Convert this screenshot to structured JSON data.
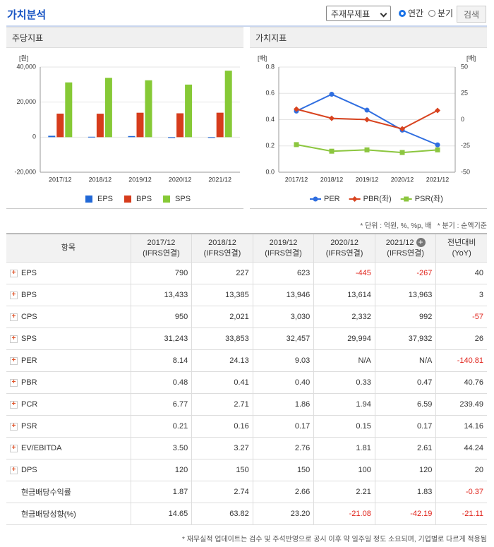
{
  "header": {
    "title": "가치분석",
    "select": "주재무제표",
    "radios": [
      "연간",
      "분기"
    ],
    "selected": 0,
    "button": "검색"
  },
  "chart_data": [
    {
      "type": "bar",
      "title": "주당지표",
      "y_unit": "[원]",
      "categories": [
        "2017/12",
        "2018/12",
        "2019/12",
        "2020/12",
        "2021/12"
      ],
      "series": [
        {
          "name": "EPS",
          "color": "#2168d6",
          "values": [
            790,
            227,
            623,
            -445,
            -267
          ]
        },
        {
          "name": "BPS",
          "color": "#d63c1c",
          "values": [
            13433,
            13385,
            13946,
            13614,
            13963
          ]
        },
        {
          "name": "SPS",
          "color": "#86c936",
          "values": [
            31243,
            33853,
            32457,
            29994,
            37932
          ]
        }
      ],
      "ylim": [
        -20000,
        40000
      ],
      "yticks": [
        {
          "value": -20000,
          "label": "-20,000"
        },
        0,
        {
          "value": 20000,
          "label": "20,000"
        },
        {
          "value": 40000,
          "label": "40,000"
        }
      ],
      "grid": true
    },
    {
      "type": "line",
      "title": "가치지표",
      "y_unit": "[배]",
      "y2_unit": "[배]",
      "categories": [
        "2017/12",
        "2018/12",
        "2019/12",
        "2020/12",
        "2021/12"
      ],
      "series": [
        {
          "name": "PER",
          "color": "#2f6ee0",
          "marker": "circle",
          "axis": "y2",
          "values": [
            8.14,
            24.13,
            9.03,
            -10,
            -24
          ]
        },
        {
          "name": "PBR(좌)",
          "color": "#d8431f",
          "marker": "diamond",
          "values": [
            0.48,
            0.41,
            0.4,
            0.33,
            0.47
          ]
        },
        {
          "name": "PSR(좌)",
          "color": "#8cc63f",
          "marker": "square",
          "values": [
            0.21,
            0.16,
            0.17,
            0.15,
            0.17
          ]
        }
      ],
      "ylim": [
        0,
        0.8
      ],
      "yticks": [
        {
          "value": 0,
          "label": "0.0"
        },
        0.2,
        0.4,
        0.6,
        0.8
      ],
      "y2lim": [
        -50,
        50
      ],
      "y2ticks": [
        -50,
        -25,
        0,
        25,
        50
      ],
      "grid": true
    }
  ],
  "notes": {
    "unit": "* 단위 : 억원, %, %p, 배",
    "quarter": "* 분기 : 순액기준",
    "footer": "* 재무실적 업데이트는 검수 및 주석반영으로 공시 이후 약 일주일 정도 소요되며, 기업별로 다르게 적용됨"
  },
  "table": {
    "columns": [
      [
        "항목"
      ],
      [
        "2017/12",
        "(IFRS연결)"
      ],
      [
        "2018/12",
        "(IFRS연결)"
      ],
      [
        "2019/12",
        "(IFRS연결)"
      ],
      [
        "2020/12",
        "(IFRS연결)"
      ],
      [
        "2021/12",
        "(IFRS연결)"
      ],
      [
        "전년대비",
        "(YoY)"
      ]
    ],
    "rows": [
      {
        "label": "EPS",
        "expandable": true,
        "values": [
          "790",
          "227",
          "623",
          "-445",
          "-267",
          "40"
        ]
      },
      {
        "label": "BPS",
        "expandable": true,
        "values": [
          "13,433",
          "13,385",
          "13,946",
          "13,614",
          "13,963",
          "3"
        ]
      },
      {
        "label": "CPS",
        "expandable": true,
        "values": [
          "950",
          "2,021",
          "3,030",
          "2,332",
          "992",
          "-57"
        ]
      },
      {
        "label": "SPS",
        "expandable": true,
        "values": [
          "31,243",
          "33,853",
          "32,457",
          "29,994",
          "37,932",
          "26"
        ]
      },
      {
        "label": "PER",
        "expandable": true,
        "values": [
          "8.14",
          "24.13",
          "9.03",
          "N/A",
          "N/A",
          "-140.81"
        ]
      },
      {
        "label": "PBR",
        "expandable": true,
        "values": [
          "0.48",
          "0.41",
          "0.40",
          "0.33",
          "0.47",
          "40.76"
        ]
      },
      {
        "label": "PCR",
        "expandable": true,
        "values": [
          "6.77",
          "2.71",
          "1.86",
          "1.94",
          "6.59",
          "239.49"
        ]
      },
      {
        "label": "PSR",
        "expandable": true,
        "values": [
          "0.21",
          "0.16",
          "0.17",
          "0.15",
          "0.17",
          "14.16"
        ]
      },
      {
        "label": "EV/EBITDA",
        "expandable": true,
        "values": [
          "3.50",
          "3.27",
          "2.76",
          "1.81",
          "2.61",
          "44.24"
        ]
      },
      {
        "label": "DPS",
        "expandable": true,
        "values": [
          "120",
          "150",
          "150",
          "100",
          "120",
          "20"
        ]
      },
      {
        "label": "현금배당수익률",
        "expandable": false,
        "values": [
          "1.87",
          "2.74",
          "2.66",
          "2.21",
          "1.83",
          "-0.37"
        ]
      },
      {
        "label": "현금배당성향(%)",
        "expandable": false,
        "values": [
          "14.65",
          "63.82",
          "23.20",
          "-21.08",
          "-42.19",
          "-21.11"
        ]
      }
    ]
  }
}
